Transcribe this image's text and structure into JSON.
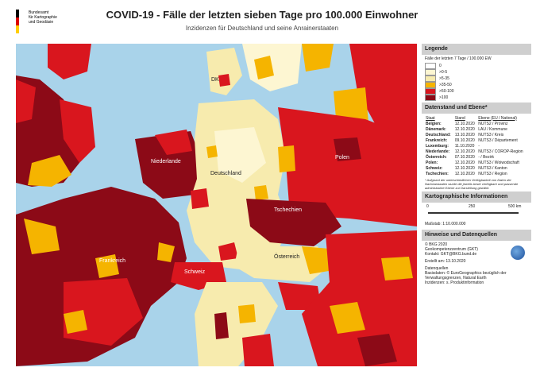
{
  "header": {
    "org_line1": "Bundesamt",
    "org_line2": "für Kartographie",
    "org_line3": "und Geodäsie",
    "title": "COVID-19 - Fälle der letzten sieben Tage pro 100.000 Einwohner",
    "subtitle": "Inzidenzen für Deutschland und seine Anrainerstaaten"
  },
  "colors": {
    "sea": "#a9d3ea",
    "land_background": "#e8e0c8",
    "class_0": "#ffffff",
    "class_0_5": "#fdf6d2",
    "class_5_35": "#f7ebae",
    "class_35_50": "#f5b400",
    "class_50_100": "#d9161e",
    "class_gt100": "#8c0a17"
  },
  "map": {
    "labels": {
      "denmark": "DK",
      "netherlands": "Niederlande",
      "germany": "Deutschland",
      "poland": "Polen",
      "czechia": "Tschechien",
      "france": "Frankreich",
      "austria": "Österreich",
      "switzerland": "Schweiz"
    }
  },
  "legend": {
    "heading": "Legende",
    "caption": "Fälle der letzten 7 Tage / 100.000 EW",
    "classes": [
      {
        "label": "0",
        "color": "#ffffff"
      },
      {
        "label": ">0-5",
        "color": "#fdf6d2"
      },
      {
        "label": ">5-35",
        "color": "#f7ebae"
      },
      {
        "label": ">35-50",
        "color": "#f5b400"
      },
      {
        "label": ">50-100",
        "color": "#d9161e"
      },
      {
        "label": ">100",
        "color": "#8c0a17"
      }
    ]
  },
  "status": {
    "heading": "Datenstand und Ebene*",
    "columns": [
      "Staat",
      "Stand",
      "Ebene (EU / National)"
    ],
    "rows": [
      [
        "Belgien:",
        "12.10.2020",
        "NUTS2 / Provinz"
      ],
      [
        "Dänemark:",
        "12.10.2020",
        "LAU / Kommune"
      ],
      [
        "Deutschland:",
        "13.10.2020",
        "NUTS3 / Kreis"
      ],
      [
        "Frankreich:",
        "09.10.2020",
        "NUTS3 / Département"
      ],
      [
        "Luxemburg:",
        "11.10.2020",
        "-"
      ],
      [
        "Niederlande:",
        "12.10.2020",
        "NUTS3 / COROP-Region"
      ],
      [
        "Österreich:",
        "07.10.2020",
        "- / Bezirk"
      ],
      [
        "Polen:",
        "12.10.2020",
        "NUTS3 / Woiwodschaft"
      ],
      [
        "Schweiz:",
        "12.10.2020",
        "NUTS3 / Kanton"
      ],
      [
        "Tschechien:",
        "12.10.2020",
        "NUTS3 / Region"
      ]
    ],
    "footnote": "* Aufgrund der unterschiedlichen Verfügbarkeit von Daten der Nachbarstaaten wurde die jeweils beste verfügbare und passende administrative Ebene zur Darstellung gewählt."
  },
  "carto": {
    "heading": "Kartographische Informationen",
    "scale_ticks": [
      "0",
      "250",
      "500 km"
    ],
    "scale_text": "Maßstab: 1:10.000.000"
  },
  "notes": {
    "heading": "Hinweise und Datenquellen",
    "copyright": "© BKG 2020",
    "org": "Geokompetenzzentrum (GKT)",
    "contact": "Kontakt: GKT@BKG.bund.de",
    "created": "Erstellt am: 13.10.2020",
    "sources_title": "Datenquellen",
    "sources_1": "Basisdaten: © EuroGeographics bezüglich der",
    "sources_2": "Verwaltungsgrenzen, Natural Earth",
    "sources_3": "Inzidenzen: s. Produktinformation"
  }
}
